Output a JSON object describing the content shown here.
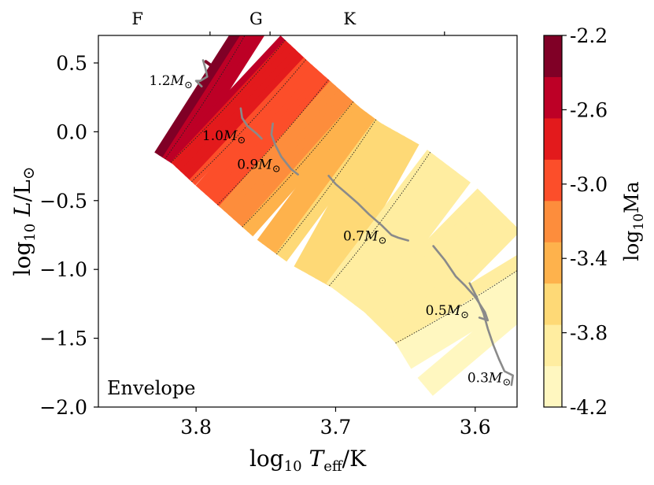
{
  "chart_data": {
    "type": "hr-diagram-contour",
    "xlabel": {
      "prefix": "log",
      "sub": "10",
      "var": " T",
      "var_sub": "eff",
      "suffix": "/K"
    },
    "ylabel": {
      "prefix": "log",
      "sub": "10",
      "var": " L",
      "suffix": "/L",
      "sun": "⊙"
    },
    "xlim": [
      3.87,
      3.57
    ],
    "ylim": [
      -2.0,
      0.7
    ],
    "x_ticks": [
      {
        "value": 3.8,
        "label": "3.8"
      },
      {
        "value": 3.7,
        "label": "3.7"
      },
      {
        "value": 3.6,
        "label": "3.6"
      }
    ],
    "y_ticks": [
      {
        "value": 0.5,
        "label": "0.5"
      },
      {
        "value": 0.0,
        "label": "0.0"
      },
      {
        "value": -0.5,
        "label": "−0.5"
      },
      {
        "value": -1.0,
        "label": "−1.0"
      },
      {
        "value": -1.5,
        "label": "−1.5"
      },
      {
        "value": -2.0,
        "label": "−2.0"
      }
    ],
    "spectral_classes": [
      {
        "label": "F",
        "value": 3.842
      },
      {
        "label": "G",
        "value": 3.757
      },
      {
        "label": "K",
        "value": 3.69
      }
    ],
    "spectral_boundaries": [
      3.79,
      3.747,
      3.622
    ],
    "colorbar": {
      "label": {
        "prefix": "log",
        "sub": "10",
        "suffix": "Ma"
      },
      "min": -4.2,
      "max": -2.2,
      "tick_labels": [
        "-2.2",
        "-2.6",
        "-3.0",
        "-3.4",
        "-3.8",
        "-4.2"
      ],
      "tick_values": [
        -2.2,
        -2.6,
        -3.0,
        -3.4,
        -3.8,
        -4.2
      ],
      "colors": [
        "#fff7c0",
        "#ffeda0",
        "#fed976",
        "#feb24c",
        "#fd8d3c",
        "#fc4e2a",
        "#e31a1c",
        "#bd0026",
        "#800026"
      ]
    },
    "band_center": [
      {
        "x": 3.797,
        "y": 0.36,
        "ma": -2.3
      },
      {
        "x": 3.78,
        "y": 0.25,
        "ma": -2.6
      },
      {
        "x": 3.76,
        "y": 0.06,
        "ma": -2.9
      },
      {
        "x": 3.74,
        "y": -0.12,
        "ma": -3.15
      },
      {
        "x": 3.72,
        "y": -0.3,
        "ma": -3.4
      },
      {
        "x": 3.7,
        "y": -0.45,
        "ma": -3.6
      },
      {
        "x": 3.67,
        "y": -0.62,
        "ma": -3.75
      },
      {
        "x": 3.64,
        "y": -0.85,
        "ma": -3.85
      },
      {
        "x": 3.61,
        "y": -1.15,
        "ma": -3.95
      },
      {
        "x": 3.595,
        "y": -1.4,
        "ma": -4.05
      },
      {
        "x": 3.585,
        "y": -1.52,
        "ma": -4.15
      }
    ],
    "band_halfwidth": 0.06,
    "top_blob": [
      {
        "x": 3.793,
        "y": 0.51
      },
      {
        "x": 3.789,
        "y": 0.48
      },
      {
        "x": 3.787,
        "y": 0.46
      }
    ],
    "tracks": [
      {
        "mass_label": {
          "num": "1.2",
          "unit": "M",
          "sun": "⊙"
        },
        "label_pos": {
          "x": 3.818,
          "y": 0.34
        },
        "points": [
          [
            3.795,
            0.52
          ],
          [
            3.793,
            0.45
          ],
          [
            3.792,
            0.4
          ],
          [
            3.797,
            0.37
          ],
          [
            3.8,
            0.37
          ],
          [
            3.796,
            0.33
          ]
        ]
      },
      {
        "mass_label": {
          "num": "1.0",
          "unit": "M",
          "sun": "⊙"
        },
        "label_pos": {
          "x": 3.78,
          "y": -0.06
        },
        "points": [
          [
            3.768,
            0.17
          ],
          [
            3.767,
            0.1
          ],
          [
            3.763,
            0.04
          ],
          [
            3.757,
            -0.01
          ],
          [
            3.753,
            -0.05
          ]
        ]
      },
      {
        "mass_label": {
          "num": "0.9",
          "unit": "M",
          "sun": "⊙"
        },
        "label_pos": {
          "x": 3.755,
          "y": -0.27
        },
        "points": [
          [
            3.745,
            0.06
          ],
          [
            3.746,
            -0.02
          ],
          [
            3.743,
            -0.1
          ],
          [
            3.739,
            -0.18
          ],
          [
            3.732,
            -0.27
          ],
          [
            3.727,
            -0.31
          ]
        ]
      },
      {
        "mass_label": {
          "num": "0.7",
          "unit": "M",
          "sun": "⊙"
        },
        "label_pos": {
          "x": 3.679,
          "y": -0.79
        },
        "points": [
          [
            3.705,
            -0.32
          ],
          [
            3.7,
            -0.38
          ],
          [
            3.692,
            -0.45
          ],
          [
            3.684,
            -0.52
          ],
          [
            3.676,
            -0.6
          ],
          [
            3.667,
            -0.68
          ],
          [
            3.66,
            -0.75
          ],
          [
            3.655,
            -0.77
          ],
          [
            3.648,
            -0.79
          ]
        ]
      },
      {
        "mass_label": {
          "num": "0.5",
          "unit": "M",
          "sun": "⊙"
        },
        "label_pos": {
          "x": 3.62,
          "y": -1.33
        },
        "points": [
          [
            3.63,
            -0.83
          ],
          [
            3.622,
            -0.93
          ],
          [
            3.614,
            -1.05
          ],
          [
            3.607,
            -1.12
          ],
          [
            3.6,
            -1.2
          ],
          [
            3.593,
            -1.31
          ],
          [
            3.591,
            -1.37
          ],
          [
            3.597,
            -1.35
          ]
        ]
      },
      {
        "mass_label": {
          "num": "0.3",
          "unit": "M",
          "sun": "⊙"
        },
        "label_pos": {
          "x": 3.59,
          "y": -1.82
        },
        "points": [
          [
            3.604,
            -1.1
          ],
          [
            3.599,
            -1.2
          ],
          [
            3.594,
            -1.32
          ],
          [
            3.591,
            -1.43
          ],
          [
            3.587,
            -1.55
          ],
          [
            3.583,
            -1.65
          ],
          [
            3.579,
            -1.74
          ],
          [
            3.573,
            -1.77
          ],
          [
            3.574,
            -1.84
          ]
        ]
      }
    ],
    "annotation": "Envelope"
  }
}
